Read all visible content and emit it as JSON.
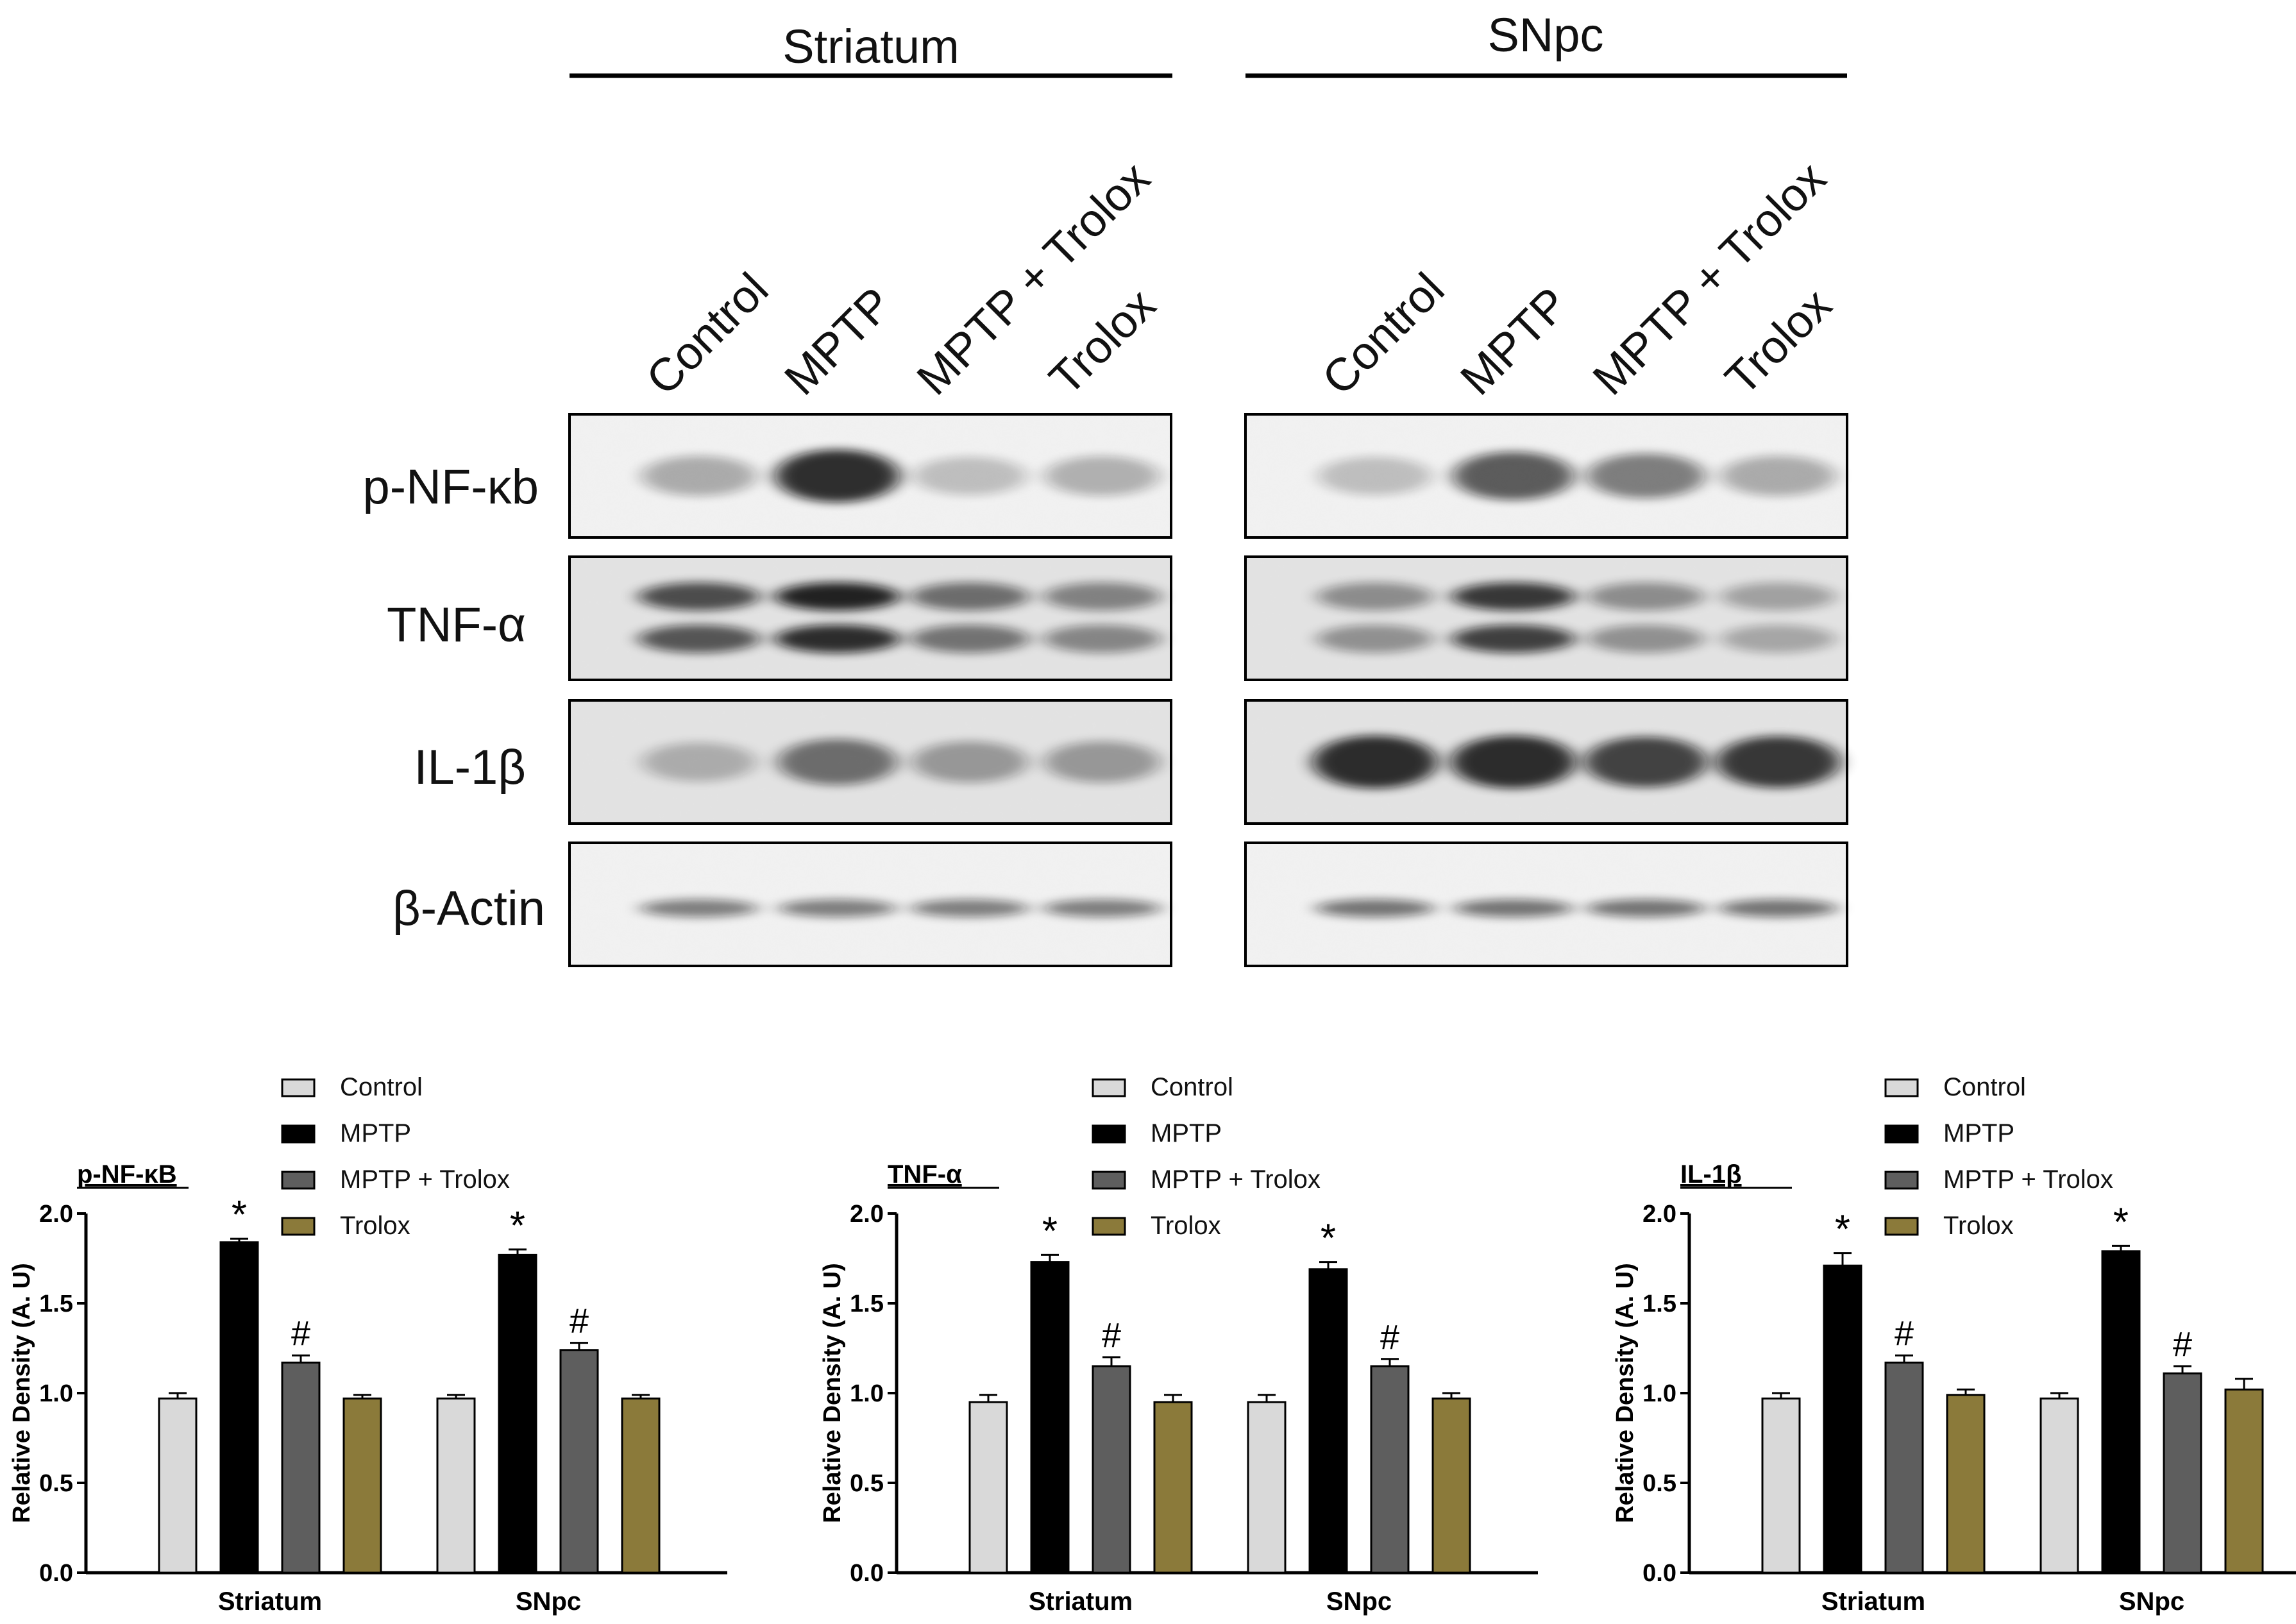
{
  "blot": {
    "regions": [
      {
        "label": "Striatum"
      },
      {
        "label": "SNpc"
      }
    ],
    "lanes": [
      "Control",
      "MPTP",
      "MPTP + Trolox",
      "Trolox"
    ],
    "proteins": [
      "p-NF-κb",
      "TNF-α",
      "IL-1β",
      "β-Actin"
    ],
    "band_intensity": [
      [
        [
          0.3,
          0.85,
          0.22,
          0.28
        ],
        [
          0.22,
          0.65,
          0.5,
          0.3
        ]
      ],
      [
        [
          0.7,
          0.9,
          0.55,
          0.45
        ],
        [
          0.4,
          0.8,
          0.4,
          0.3
        ]
      ],
      [
        [
          0.25,
          0.55,
          0.35,
          0.35
        ],
        [
          0.85,
          0.85,
          0.75,
          0.8
        ]
      ],
      [
        [
          0.5,
          0.5,
          0.5,
          0.5
        ],
        [
          0.55,
          0.55,
          0.55,
          0.55
        ]
      ]
    ]
  },
  "chart_data": [
    {
      "type": "bar",
      "title": "p-NF-κB",
      "ylabel": "Relative Density (A. U)",
      "categories": [
        "Striatum",
        "SNpc"
      ],
      "ylim": [
        0,
        2.0
      ],
      "yticks": [
        "0.0",
        "0.5",
        "1.0",
        "1.5",
        "2.0"
      ],
      "legend_position": "top",
      "series": [
        {
          "name": "Control",
          "values": [
            0.97,
            0.97
          ],
          "err": [
            0.03,
            0.02
          ],
          "color": "#d9d9d9"
        },
        {
          "name": "MPTP",
          "values": [
            1.84,
            1.77
          ],
          "err": [
            0.02,
            0.03
          ],
          "color": "#000000",
          "mark": "*"
        },
        {
          "name": "MPTP + Trolox",
          "values": [
            1.17,
            1.24
          ],
          "err": [
            0.04,
            0.04
          ],
          "color": "#5e5e5e",
          "mark": "#"
        },
        {
          "name": "Trolox",
          "values": [
            0.97,
            0.97
          ],
          "err": [
            0.02,
            0.02
          ],
          "color": "#8b7a3a"
        }
      ]
    },
    {
      "type": "bar",
      "title": "TNF-α",
      "ylabel": "Relative Density (A. U)",
      "categories": [
        "Striatum",
        "SNpc"
      ],
      "ylim": [
        0,
        2.0
      ],
      "yticks": [
        "0.0",
        "0.5",
        "1.0",
        "1.5",
        "2.0"
      ],
      "legend_position": "top",
      "series": [
        {
          "name": "Control",
          "values": [
            0.95,
            0.95
          ],
          "err": [
            0.04,
            0.04
          ],
          "color": "#d9d9d9"
        },
        {
          "name": "MPTP",
          "values": [
            1.73,
            1.69
          ],
          "err": [
            0.04,
            0.04
          ],
          "color": "#000000",
          "mark": "*"
        },
        {
          "name": "MPTP + Trolox",
          "values": [
            1.15,
            1.15
          ],
          "err": [
            0.05,
            0.04
          ],
          "color": "#5e5e5e",
          "mark": "#"
        },
        {
          "name": "Trolox",
          "values": [
            0.95,
            0.97
          ],
          "err": [
            0.04,
            0.03
          ],
          "color": "#8b7a3a"
        }
      ]
    },
    {
      "type": "bar",
      "title": "IL-1β",
      "ylabel": "Relative Density (A. U)",
      "categories": [
        "Striatum",
        "SNpc"
      ],
      "ylim": [
        0,
        2.0
      ],
      "yticks": [
        "0.0",
        "0.5",
        "1.0",
        "1.5",
        "2.0"
      ],
      "legend_position": "top",
      "series": [
        {
          "name": "Control",
          "values": [
            0.97,
            0.97
          ],
          "err": [
            0.03,
            0.03
          ],
          "color": "#d9d9d9"
        },
        {
          "name": "MPTP",
          "values": [
            1.71,
            1.79
          ],
          "err": [
            0.07,
            0.03
          ],
          "color": "#000000",
          "mark": "*"
        },
        {
          "name": "MPTP + Trolox",
          "values": [
            1.17,
            1.11
          ],
          "err": [
            0.04,
            0.04
          ],
          "color": "#5e5e5e",
          "mark": "#"
        },
        {
          "name": "Trolox",
          "values": [
            0.99,
            1.02
          ],
          "err": [
            0.03,
            0.06
          ],
          "color": "#8b7a3a"
        }
      ]
    }
  ]
}
